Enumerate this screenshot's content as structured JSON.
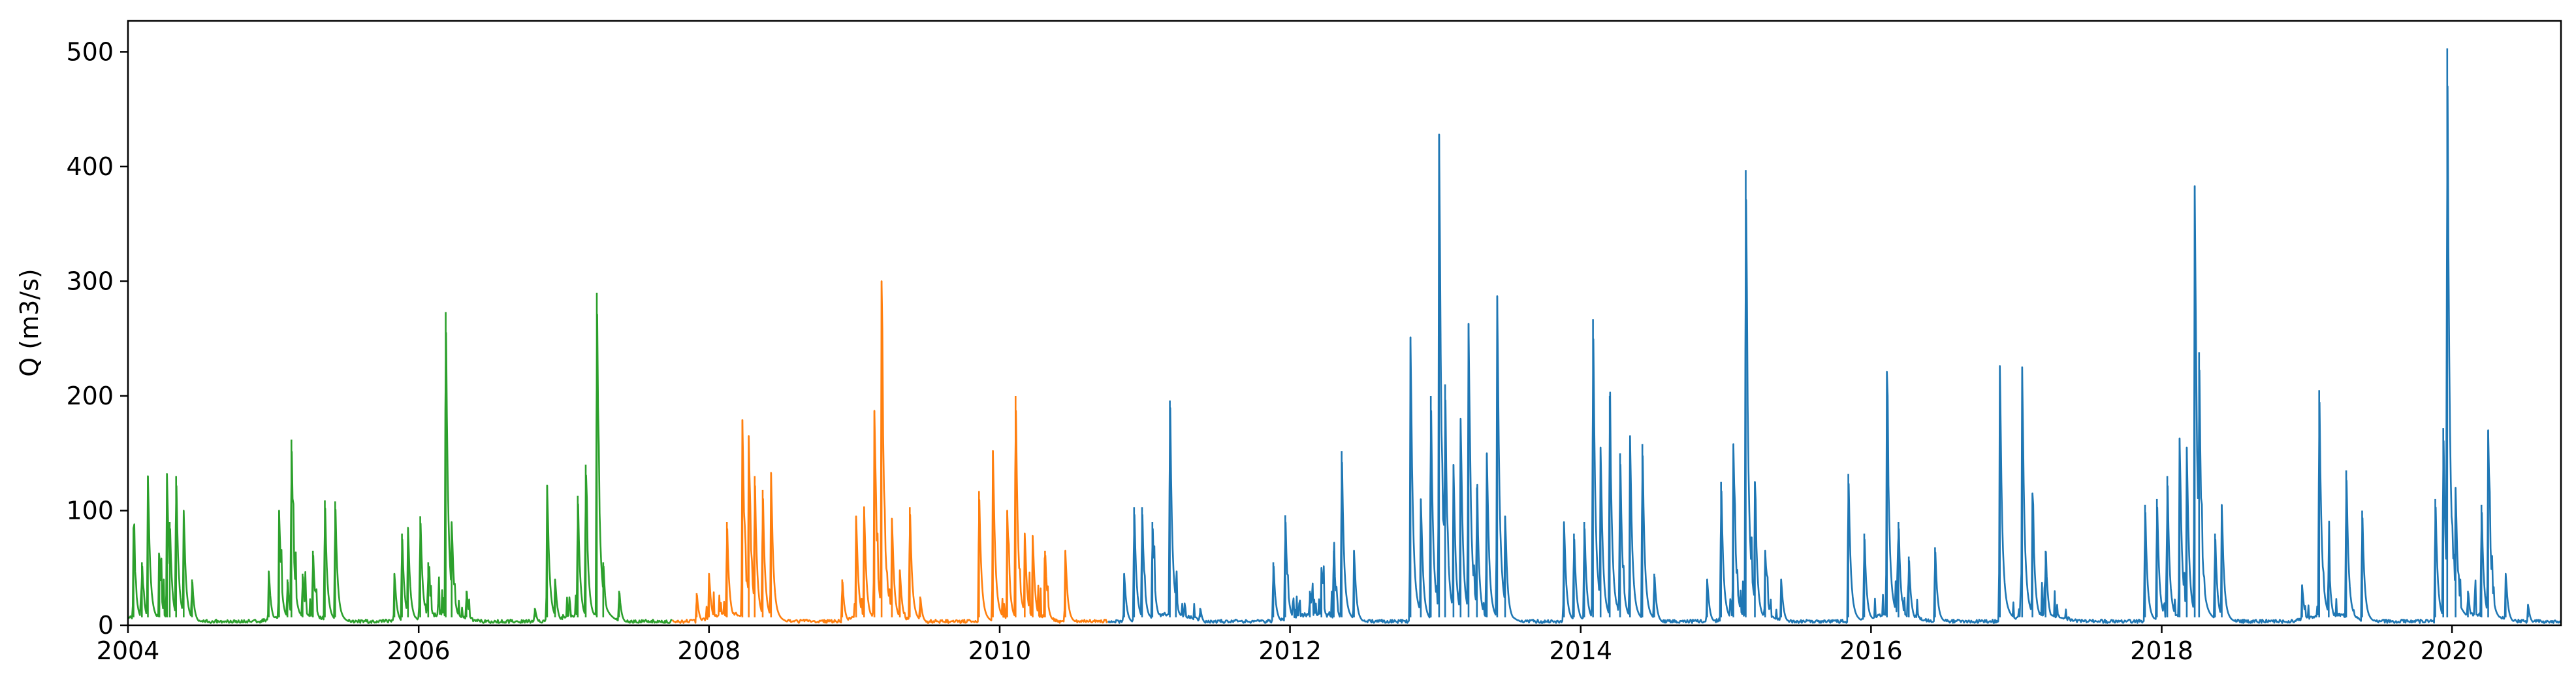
{
  "chart_data": {
    "type": "line",
    "title": "",
    "xlabel": "",
    "ylabel": "Q (m3/s)",
    "xlim": [
      "2004-01-01",
      "2020-10-01"
    ],
    "ylim": [
      0,
      527
    ],
    "x_ticks": [
      "2004-01-01",
      "2006-01-01",
      "2008-01-01",
      "2010-01-01",
      "2012-01-01",
      "2014-01-01",
      "2016-01-01",
      "2018-01-01",
      "2020-01-01"
    ],
    "x_tick_labels": [
      "2004",
      "2006",
      "2008",
      "2010",
      "2012",
      "2014",
      "2016",
      "2018",
      "2020"
    ],
    "y_ticks": [
      0,
      100,
      200,
      300,
      400,
      500
    ],
    "y_tick_labels": [
      "0",
      "100",
      "200",
      "300",
      "400",
      "500"
    ],
    "grid": false,
    "legend": "none",
    "base_flow": 2,
    "series": [
      {
        "color": "#2ca02c",
        "start": "2004-01-01",
        "end": "2007-09-30",
        "peaks": [
          [
            "2004-01-15",
            85
          ],
          [
            "2004-02-05",
            55
          ],
          [
            "2004-02-20",
            130
          ],
          [
            "2004-03-20",
            60
          ],
          [
            "2004-04-08",
            132
          ],
          [
            "2004-04-15",
            90
          ],
          [
            "2004-05-01",
            130
          ],
          [
            "2004-05-20",
            100
          ],
          [
            "2004-06-10",
            40
          ],
          [
            "2004-12-20",
            47
          ],
          [
            "2005-01-15",
            100
          ],
          [
            "2005-02-05",
            40
          ],
          [
            "2005-02-15",
            162
          ],
          [
            "2005-03-15",
            45
          ],
          [
            "2005-04-10",
            65
          ],
          [
            "2005-05-10",
            109
          ],
          [
            "2005-06-05",
            108
          ],
          [
            "2005-11-01",
            45
          ],
          [
            "2005-11-20",
            80
          ],
          [
            "2005-12-05",
            85
          ],
          [
            "2006-01-05",
            95
          ],
          [
            "2006-01-25",
            55
          ],
          [
            "2006-03-10",
            273
          ],
          [
            "2006-03-25",
            90
          ],
          [
            "2006-05-01",
            30
          ],
          [
            "2006-10-20",
            15
          ],
          [
            "2006-11-20",
            122
          ],
          [
            "2006-12-10",
            40
          ],
          [
            "2007-02-05",
            113
          ],
          [
            "2007-02-25",
            140
          ],
          [
            "2007-03-25",
            290
          ],
          [
            "2007-04-10",
            55
          ],
          [
            "2007-05-20",
            30
          ]
        ]
      },
      {
        "color": "#ff7f0e",
        "start": "2007-10-01",
        "end": "2010-09-30",
        "peaks": [
          [
            "2007-12-01",
            28
          ],
          [
            "2008-01-01",
            45
          ],
          [
            "2008-02-15",
            90
          ],
          [
            "2008-03-25",
            179
          ],
          [
            "2008-04-10",
            165
          ],
          [
            "2008-04-25",
            130
          ],
          [
            "2008-05-15",
            118
          ],
          [
            "2008-06-05",
            133
          ],
          [
            "2008-12-01",
            40
          ],
          [
            "2009-01-05",
            95
          ],
          [
            "2009-01-25",
            103
          ],
          [
            "2009-02-20",
            187
          ],
          [
            "2009-03-10",
            300
          ],
          [
            "2009-04-05",
            93
          ],
          [
            "2009-04-25",
            48
          ],
          [
            "2009-05-20",
            103
          ],
          [
            "2009-06-15",
            25
          ],
          [
            "2009-11-10",
            117
          ],
          [
            "2009-12-15",
            152
          ],
          [
            "2010-01-20",
            100
          ],
          [
            "2010-02-10",
            200
          ],
          [
            "2010-03-05",
            80
          ],
          [
            "2010-03-25",
            78
          ],
          [
            "2010-04-25",
            65
          ],
          [
            "2010-06-15",
            65
          ]
        ]
      },
      {
        "color": "#1f77b4",
        "start": "2010-10-01",
        "end": "2020-10-01",
        "peaks": [
          [
            "2010-11-10",
            45
          ],
          [
            "2010-12-05",
            103
          ],
          [
            "2010-12-25",
            103
          ],
          [
            "2011-01-20",
            90
          ],
          [
            "2011-03-05",
            196
          ],
          [
            "2011-03-20",
            35
          ],
          [
            "2011-05-20",
            15
          ],
          [
            "2011-11-20",
            55
          ],
          [
            "2011-12-20",
            96
          ],
          [
            "2012-02-20",
            30
          ],
          [
            "2012-03-20",
            50
          ],
          [
            "2012-04-20",
            65
          ],
          [
            "2012-05-10",
            152
          ],
          [
            "2012-06-10",
            65
          ],
          [
            "2012-10-30",
            251
          ],
          [
            "2012-11-25",
            110
          ],
          [
            "2012-12-20",
            200
          ],
          [
            "2013-01-10",
            428
          ],
          [
            "2013-01-25",
            210
          ],
          [
            "2013-02-15",
            140
          ],
          [
            "2013-03-05",
            180
          ],
          [
            "2013-03-25",
            263
          ],
          [
            "2013-04-15",
            120
          ],
          [
            "2013-05-10",
            150
          ],
          [
            "2013-06-05",
            287
          ],
          [
            "2013-06-25",
            95
          ],
          [
            "2013-11-20",
            90
          ],
          [
            "2013-12-15",
            80
          ],
          [
            "2014-01-10",
            90
          ],
          [
            "2014-02-01",
            267
          ],
          [
            "2014-02-20",
            155
          ],
          [
            "2014-03-15",
            200
          ],
          [
            "2014-04-10",
            150
          ],
          [
            "2014-05-05",
            165
          ],
          [
            "2014-06-05",
            158
          ],
          [
            "2014-07-05",
            45
          ],
          [
            "2014-11-15",
            40
          ],
          [
            "2014-12-20",
            125
          ],
          [
            "2015-01-20",
            158
          ],
          [
            "2015-02-20",
            397
          ],
          [
            "2015-03-15",
            125
          ],
          [
            "2015-04-10",
            65
          ],
          [
            "2015-05-20",
            40
          ],
          [
            "2015-11-05",
            132
          ],
          [
            "2015-12-15",
            80
          ],
          [
            "2016-02-10",
            221
          ],
          [
            "2016-03-10",
            90
          ],
          [
            "2016-04-05",
            60
          ],
          [
            "2016-06-10",
            68
          ],
          [
            "2016-11-20",
            226
          ],
          [
            "2017-01-15",
            225
          ],
          [
            "2017-02-10",
            115
          ],
          [
            "2017-03-15",
            65
          ],
          [
            "2017-11-20",
            105
          ],
          [
            "2017-12-20",
            110
          ],
          [
            "2018-01-15",
            130
          ],
          [
            "2018-02-15",
            163
          ],
          [
            "2018-03-05",
            155
          ],
          [
            "2018-03-25",
            383
          ],
          [
            "2018-04-05",
            238
          ],
          [
            "2018-05-15",
            80
          ],
          [
            "2018-06-01",
            105
          ],
          [
            "2018-12-20",
            35
          ],
          [
            "2019-02-01",
            205
          ],
          [
            "2019-02-25",
            60
          ],
          [
            "2019-04-10",
            135
          ],
          [
            "2019-05-20",
            100
          ],
          [
            "2019-11-20",
            110
          ],
          [
            "2019-12-10",
            172
          ],
          [
            "2019-12-20",
            503
          ],
          [
            "2020-01-10",
            120
          ],
          [
            "2020-02-10",
            30
          ],
          [
            "2020-03-15",
            105
          ],
          [
            "2020-04-01",
            170
          ],
          [
            "2020-05-15",
            45
          ],
          [
            "2020-07-10",
            18
          ]
        ]
      }
    ]
  }
}
